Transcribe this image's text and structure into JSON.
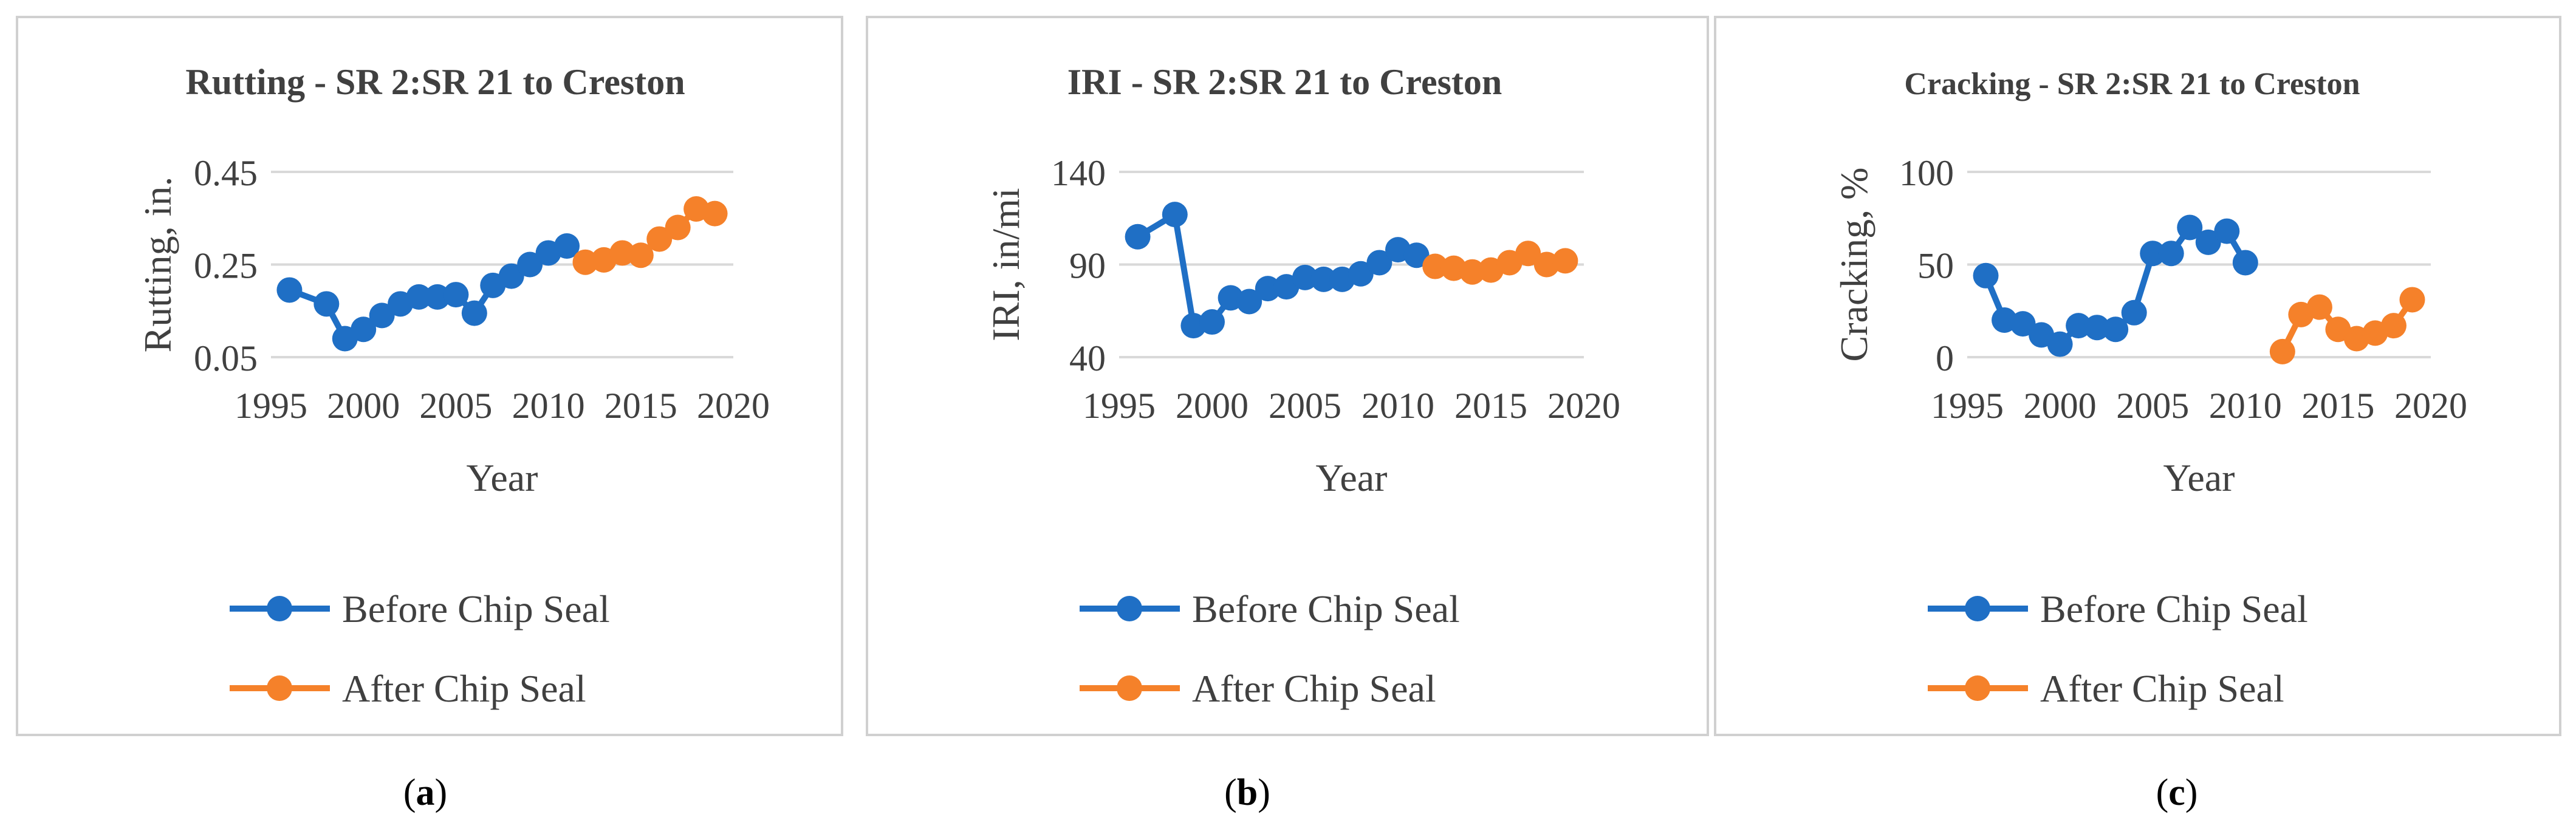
{
  "figure": {
    "panels": [
      {
        "label": "(a)",
        "label_letter": "a",
        "title": "Rutting - SR 2:SR 21 to Creston",
        "xlabel": "Year",
        "ylabel": "Rutting, in.",
        "legend": [
          "Before Chip Seal",
          "After Chip Seal"
        ]
      },
      {
        "label": "(b)",
        "label_letter": "b",
        "title": "IRI - SR 2:SR 21 to Creston",
        "xlabel": "Year",
        "ylabel": "IRI, in/mi",
        "legend": [
          "Before Chip Seal",
          "After Chip Seal"
        ]
      },
      {
        "label": "(c)",
        "label_letter": "c",
        "title": "Cracking - SR 2:SR 21 to Creston",
        "xlabel": "Year",
        "ylabel": "Cracking, %",
        "legend": [
          "Before Chip Seal",
          "After Chip Seal"
        ]
      }
    ]
  },
  "chart_data": [
    {
      "type": "line",
      "title": "Rutting - SR 2:SR 21 to Creston",
      "xlabel": "Year",
      "ylabel": "Rutting, in.",
      "xlim": [
        1995,
        2020
      ],
      "ylim": [
        0.05,
        0.45
      ],
      "xticks": [
        1995,
        2000,
        2005,
        2010,
        2015,
        2020
      ],
      "yticks": [
        0.05,
        0.25,
        0.45
      ],
      "ytick_labels": [
        "0.05",
        "0.25",
        "0.45"
      ],
      "grid": "horizontal",
      "legend_position": "bottom",
      "series": [
        {
          "name": "Before Chip Seal",
          "color": "#1f6fc5",
          "x": [
            1996,
            1998,
            1999,
            2000,
            2001,
            2002,
            2003,
            2004,
            2005,
            2006,
            2007,
            2008,
            2009,
            2010,
            2011
          ],
          "y": [
            0.195,
            0.165,
            0.09,
            0.11,
            0.14,
            0.165,
            0.18,
            0.18,
            0.185,
            0.145,
            0.205,
            0.225,
            0.25,
            0.275,
            0.29
          ]
        },
        {
          "name": "After Chip Seal",
          "color": "#f5812a",
          "x": [
            2012,
            2013,
            2014,
            2015,
            2016,
            2017,
            2018,
            2019
          ],
          "y": [
            0.255,
            0.26,
            0.275,
            0.27,
            0.305,
            0.33,
            0.37,
            0.36
          ]
        }
      ]
    },
    {
      "type": "line",
      "title": "IRI - SR 2:SR 21 to Creston",
      "xlabel": "Year",
      "ylabel": "IRI, in/mi",
      "xlim": [
        1995,
        2020
      ],
      "ylim": [
        40,
        140
      ],
      "xticks": [
        1995,
        2000,
        2005,
        2010,
        2015,
        2020
      ],
      "yticks": [
        40,
        90,
        140
      ],
      "ytick_labels": [
        "40",
        "90",
        "140"
      ],
      "grid": "horizontal",
      "legend_position": "bottom",
      "series": [
        {
          "name": "Before Chip Seal",
          "color": "#1f6fc5",
          "x": [
            1996,
            1998,
            1999,
            2000,
            2001,
            2002,
            2003,
            2004,
            2005,
            2006,
            2007,
            2008,
            2009,
            2010,
            2011
          ],
          "y": [
            105,
            117,
            57,
            59,
            72,
            70,
            77,
            78,
            83,
            82,
            82,
            85,
            91,
            98,
            95
          ]
        },
        {
          "name": "After Chip Seal",
          "color": "#f5812a",
          "x": [
            2012,
            2013,
            2014,
            2015,
            2016,
            2017,
            2018,
            2019
          ],
          "y": [
            89,
            88,
            86,
            87,
            91,
            96,
            90,
            92
          ]
        }
      ]
    },
    {
      "type": "line",
      "title": "Cracking - SR 2:SR 21 to Creston",
      "xlabel": "Year",
      "ylabel": "Cracking, %",
      "xlim": [
        1995,
        2020
      ],
      "ylim": [
        0,
        100
      ],
      "xticks": [
        1995,
        2000,
        2005,
        2010,
        2015,
        2020
      ],
      "yticks": [
        0,
        50,
        100
      ],
      "ytick_labels": [
        "0",
        "50",
        "100"
      ],
      "grid": "horizontal",
      "legend_position": "bottom",
      "series": [
        {
          "name": "Before Chip Seal",
          "color": "#1f6fc5",
          "x": [
            1996,
            1997,
            1998,
            1999,
            2000,
            2001,
            2002,
            2003,
            2004,
            2005,
            2006,
            2007,
            2008,
            2009,
            2010
          ],
          "y": [
            44,
            20,
            18,
            12,
            7,
            17,
            16,
            15,
            24,
            56,
            56,
            70,
            62,
            68,
            51
          ]
        },
        {
          "name": "After Chip Seal",
          "color": "#f5812a",
          "x": [
            2012,
            2013,
            2014,
            2015,
            2016,
            2017,
            2018,
            2019
          ],
          "y": [
            3,
            23,
            27,
            15,
            10,
            13,
            17,
            31
          ]
        }
      ]
    }
  ]
}
